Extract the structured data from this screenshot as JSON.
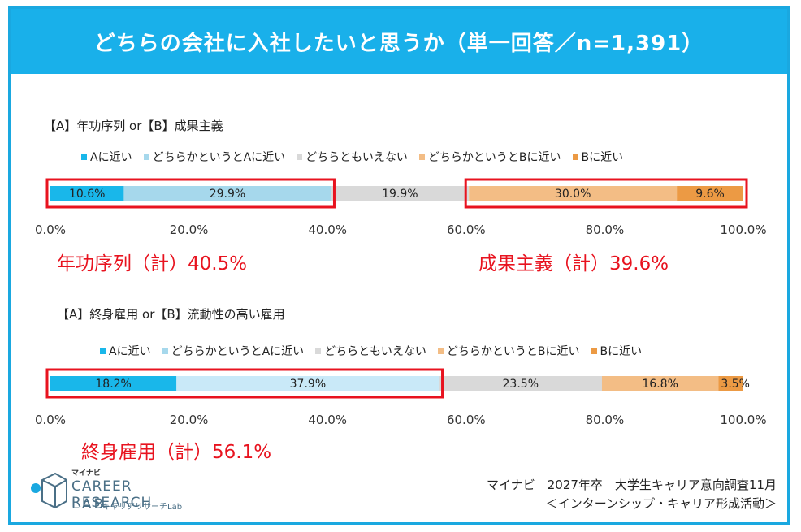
{
  "title": "どちらの会社に入社したいと思うか（単一回答／n=1,391）",
  "legend": [
    {
      "label": "Aに近い",
      "color": "#19b7ea"
    },
    {
      "label": "どちらかというとAに近い",
      "color": "#a6d8ec"
    },
    {
      "label": "どちらともいえない",
      "color": "#d9d9d9"
    },
    {
      "label": "どちらかというとBに近い",
      "color": "#f3bd85"
    },
    {
      "label": "Bに近い",
      "color": "#ec9a44"
    }
  ],
  "chart_data": [
    {
      "type": "bar",
      "orientation": "horizontal-stacked",
      "title": "【A】年功序列 or【B】成果主義",
      "values": [
        10.6,
        29.9,
        19.9,
        30.0,
        9.6
      ],
      "labels": [
        "10.6%",
        "29.9%",
        "19.9%",
        "30.0%",
        "9.6%"
      ],
      "colors": [
        "#19b7ea",
        "#a6d8ec",
        "#d9d9d9",
        "#f3bd85",
        "#ec9a44"
      ],
      "xlim": [
        0,
        100
      ],
      "ticks": [
        "0.0%",
        "20.0%",
        "40.0%",
        "60.0%",
        "80.0%",
        "100.0%"
      ],
      "highlights": [
        {
          "from": 0,
          "to": 40.5
        },
        {
          "from": 60.4,
          "to": 100
        }
      ],
      "subtotals": [
        "年功序列（計）40.5%",
        "成果主義（計）39.6%"
      ]
    },
    {
      "type": "bar",
      "orientation": "horizontal-stacked",
      "title": "【A】終身雇用 or【B】流動性の高い雇用",
      "values": [
        18.2,
        37.9,
        23.5,
        16.8,
        3.5
      ],
      "labels": [
        "18.2%",
        "37.9%",
        "23.5%",
        "16.8%",
        "3.5%"
      ],
      "colors": [
        "#19b7ea",
        "#c9e9f8",
        "#d9d9d9",
        "#f3bd85",
        "#ec9a44"
      ],
      "xlim": [
        0,
        100
      ],
      "ticks": [
        "0.0%",
        "20.0%",
        "40.0%",
        "60.0%",
        "80.0%",
        "100.0%"
      ],
      "highlights": [
        {
          "from": 0,
          "to": 56.1
        }
      ],
      "subtotals": [
        "終身雇用（計）56.1%"
      ]
    }
  ],
  "source": {
    "line1": "マイナビ　2027年卒　大学生キャリア意向調査11月",
    "line2": "＜インターンシップ・キャリア形成活動＞"
  },
  "logo": {
    "brand": "マイナビ",
    "line1": "CAREER RESEARCH",
    "line2": "LAB",
    "sub": "キャリアリサーチLab"
  }
}
